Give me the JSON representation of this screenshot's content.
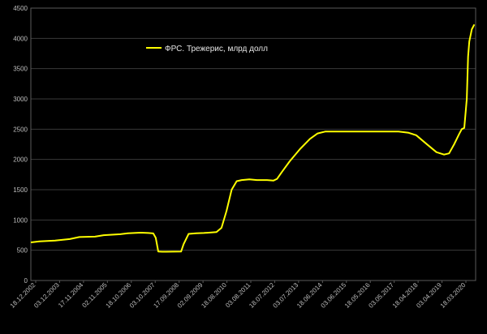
{
  "chart_data": {
    "type": "line",
    "title": "",
    "xlabel": "",
    "ylabel": "",
    "ylim": [
      0,
      4500
    ],
    "y_ticks": [
      0,
      500,
      1000,
      1500,
      2000,
      2500,
      3000,
      3500,
      4000,
      4500
    ],
    "x_tick_labels": [
      "18.12.2002",
      "03.12.2003",
      "17.11.2004",
      "02.11.2005",
      "18.10.2006",
      "03.10.2007",
      "17.09.2008",
      "02.09.2009",
      "18.08.2010",
      "03.08.2011",
      "18.07.2012",
      "03.07.2013",
      "18.06.2014",
      "03.06.2015",
      "18.05.2016",
      "03.05.2017",
      "18.04.2018",
      "03.04.2019",
      "18.03.2020"
    ],
    "grid": true,
    "legend_position": "top-center",
    "colors": {
      "background": "#000000",
      "series": "#ffff00",
      "grid": "#3a3a3a",
      "text": "#bfbfbf"
    },
    "series": [
      {
        "name": "ФРС. Трежерис, млрд долл",
        "x": [
          2002.96,
          2003.3,
          2003.92,
          2004.5,
          2004.88,
          2005.5,
          2005.84,
          2006.5,
          2006.8,
          2007.3,
          2007.6,
          2007.8,
          2007.9,
          2008.0,
          2008.15,
          2008.3,
          2008.9,
          2009.0,
          2009.2,
          2009.5,
          2009.8,
          2010.3,
          2010.5,
          2010.7,
          2010.9,
          2011.1,
          2011.3,
          2011.6,
          2011.9,
          2012.3,
          2012.55,
          2012.7,
          2012.9,
          2013.2,
          2013.6,
          2014.0,
          2014.3,
          2014.6,
          2015.0,
          2015.5,
          2016.0,
          2016.5,
          2017.0,
          2017.5,
          2017.9,
          2018.2,
          2018.6,
          2019.0,
          2019.3,
          2019.5,
          2019.7,
          2019.9,
          2020.0,
          2020.1,
          2020.2,
          2020.25,
          2020.3,
          2020.4,
          2020.5
        ],
        "values": [
          630,
          645,
          660,
          685,
          718,
          725,
          748,
          765,
          780,
          790,
          785,
          778,
          705,
          480,
          475,
          475,
          478,
          600,
          770,
          780,
          785,
          800,
          870,
          1150,
          1500,
          1640,
          1660,
          1670,
          1660,
          1660,
          1650,
          1680,
          1800,
          1970,
          2170,
          2340,
          2430,
          2460,
          2460,
          2460,
          2460,
          2460,
          2460,
          2460,
          2440,
          2400,
          2260,
          2120,
          2080,
          2100,
          2250,
          2420,
          2500,
          2520,
          3000,
          3700,
          3950,
          4150,
          4230
        ]
      }
    ]
  }
}
